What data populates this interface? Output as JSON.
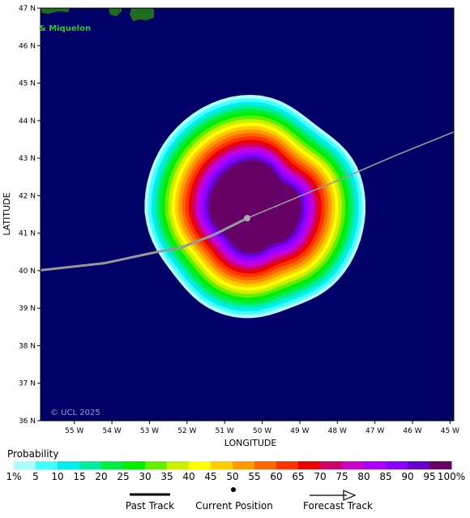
{
  "map": {
    "region_label": "& Miquelon",
    "watermark": "© UCL 2025",
    "ocean_color": "#000066",
    "land_color": "#1e6e1e",
    "x_axis_title": "LONGITUDE",
    "y_axis_title": "LATITUDE",
    "x_ticks": [
      {
        "value": -55,
        "label": "55 W"
      },
      {
        "value": -54,
        "label": "54 W"
      },
      {
        "value": -53,
        "label": "53 W"
      },
      {
        "value": -52,
        "label": "52 W"
      },
      {
        "value": -51,
        "label": "51 W"
      },
      {
        "value": -50,
        "label": "50 W"
      },
      {
        "value": -49,
        "label": "49 W"
      },
      {
        "value": -48,
        "label": "48 W"
      },
      {
        "value": -47,
        "label": "47 W"
      },
      {
        "value": -46,
        "label": "46 W"
      },
      {
        "value": -45,
        "label": "45 W"
      }
    ],
    "y_ticks": [
      {
        "value": 47,
        "label": "47 N"
      },
      {
        "value": 46,
        "label": "46 N"
      },
      {
        "value": 45,
        "label": "45 N"
      },
      {
        "value": 44,
        "label": "44 N"
      },
      {
        "value": 43,
        "label": "43 N"
      },
      {
        "value": 42,
        "label": "42 N"
      },
      {
        "value": 41,
        "label": "41 N"
      },
      {
        "value": 40,
        "label": "40 N"
      },
      {
        "value": 39,
        "label": "39 N"
      },
      {
        "value": 38,
        "label": "38 N"
      },
      {
        "value": 37,
        "label": "37 N"
      },
      {
        "value": 36,
        "label": "36 N"
      }
    ],
    "lon_range": [
      -55.9,
      -44.9
    ],
    "lat_range": [
      36,
      47
    ],
    "current_position": {
      "lon": -50.4,
      "lat": 41.4
    },
    "past_track": [
      {
        "lon": -56.0,
        "lat": 40.0
      },
      {
        "lon": -54.2,
        "lat": 40.2
      },
      {
        "lon": -52.8,
        "lat": 40.5
      },
      {
        "lon": -52.2,
        "lat": 40.6
      },
      {
        "lon": -51.3,
        "lat": 40.95
      },
      {
        "lon": -50.4,
        "lat": 41.4
      }
    ],
    "forecast_track": [
      {
        "lon": -50.4,
        "lat": 41.4
      },
      {
        "lon": -48.0,
        "lat": 42.4
      },
      {
        "lon": -46.5,
        "lat": 43.05
      },
      {
        "lon": -44.9,
        "lat": 43.7
      }
    ]
  },
  "legend": {
    "title": "Probability",
    "labels": [
      "1%",
      "5",
      "10",
      "15",
      "20",
      "25",
      "30",
      "35",
      "40",
      "45",
      "50",
      "55",
      "60",
      "65",
      "70",
      "75",
      "80",
      "85",
      "90",
      "95",
      "100%"
    ],
    "colors": [
      "#aaffff",
      "#44ffff",
      "#00eeee",
      "#00ee99",
      "#00ee44",
      "#00ee00",
      "#66ee00",
      "#ccee00",
      "#ffff00",
      "#ffcc00",
      "#ff9900",
      "#ff6600",
      "#ff3300",
      "#ee0000",
      "#cc0066",
      "#cc00cc",
      "#aa00ff",
      "#8800ff",
      "#6600cc",
      "#660066"
    ],
    "past_track_label": "Past Track",
    "current_position_label": "Current Position",
    "forecast_track_label": "Forecast Track"
  }
}
